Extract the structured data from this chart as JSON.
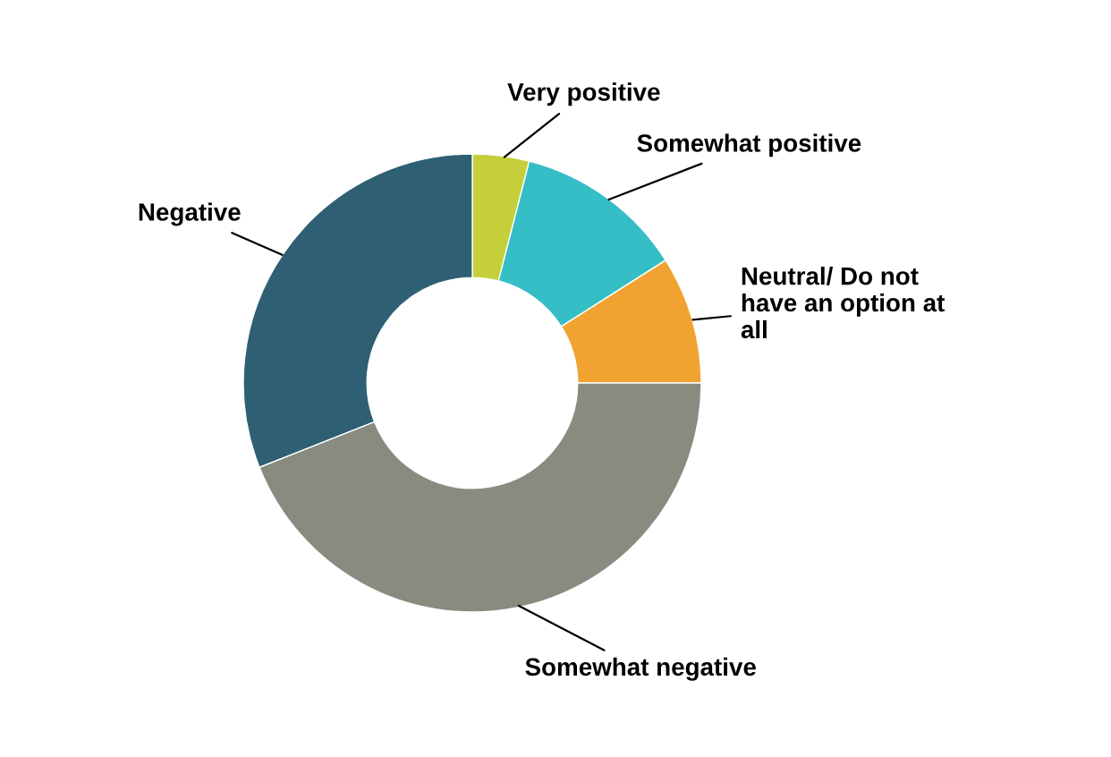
{
  "chart_data": {
    "type": "donut",
    "categories": [
      "Very positive",
      "Somewhat positive",
      "Neutral/ Do not\nhave an option at\nall",
      "Somewhat negative",
      "Negative"
    ],
    "values": [
      4,
      12,
      9,
      44,
      31
    ],
    "colors": [
      "#c5cf3a",
      "#35bec6",
      "#f0a330",
      "#888c80",
      "#2e5f73"
    ],
    "legend": false
  }
}
